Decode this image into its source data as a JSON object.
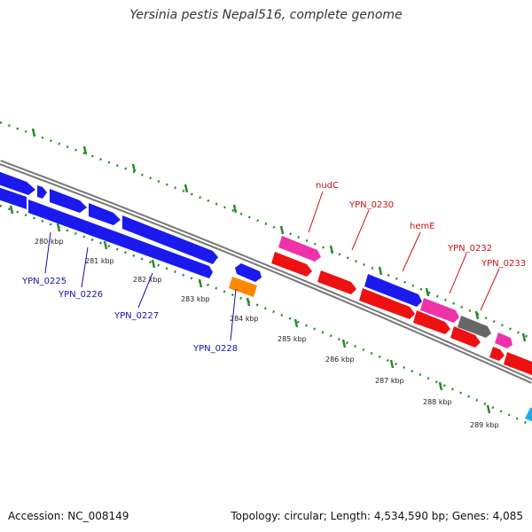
{
  "title": "Yersinia pestis Nepal516, complete genome",
  "footer": {
    "accession": "Accession: NC_008149",
    "summary": "Topology: circular; Length: 4,534,590 bp; Genes: 4,085"
  },
  "colors": {
    "backbone": "#777777",
    "tick": "#2a8a2a",
    "tick_label": "#222222",
    "label_blue": "#1111aa",
    "label_red": "#cc1111",
    "gene_blue": "#1a1aee",
    "gene_red": "#ee1111",
    "gene_pink": "#ee33aa",
    "gene_orange": "#ff8800",
    "gene_gray": "#666666",
    "gene_cyan": "#22aaee"
  },
  "ticks": [
    "280 kbp",
    "281 kbp",
    "282 kbp",
    "283 kbp",
    "284 kbp",
    "285 kbp",
    "286 kbp",
    "287 kbp",
    "288 kbp",
    "289 kbp"
  ],
  "gene_labels": [
    {
      "text": "YPN_0225",
      "color": "blue"
    },
    {
      "text": "YPN_0226",
      "color": "blue"
    },
    {
      "text": "YPN_0227",
      "color": "blue"
    },
    {
      "text": "YPN_0228",
      "color": "blue"
    },
    {
      "text": "nudC",
      "color": "red"
    },
    {
      "text": "YPN_0230",
      "color": "red"
    },
    {
      "text": "hemE",
      "color": "red"
    },
    {
      "text": "YPN_0232",
      "color": "red"
    },
    {
      "text": "YPN_0233",
      "color": "red"
    }
  ]
}
